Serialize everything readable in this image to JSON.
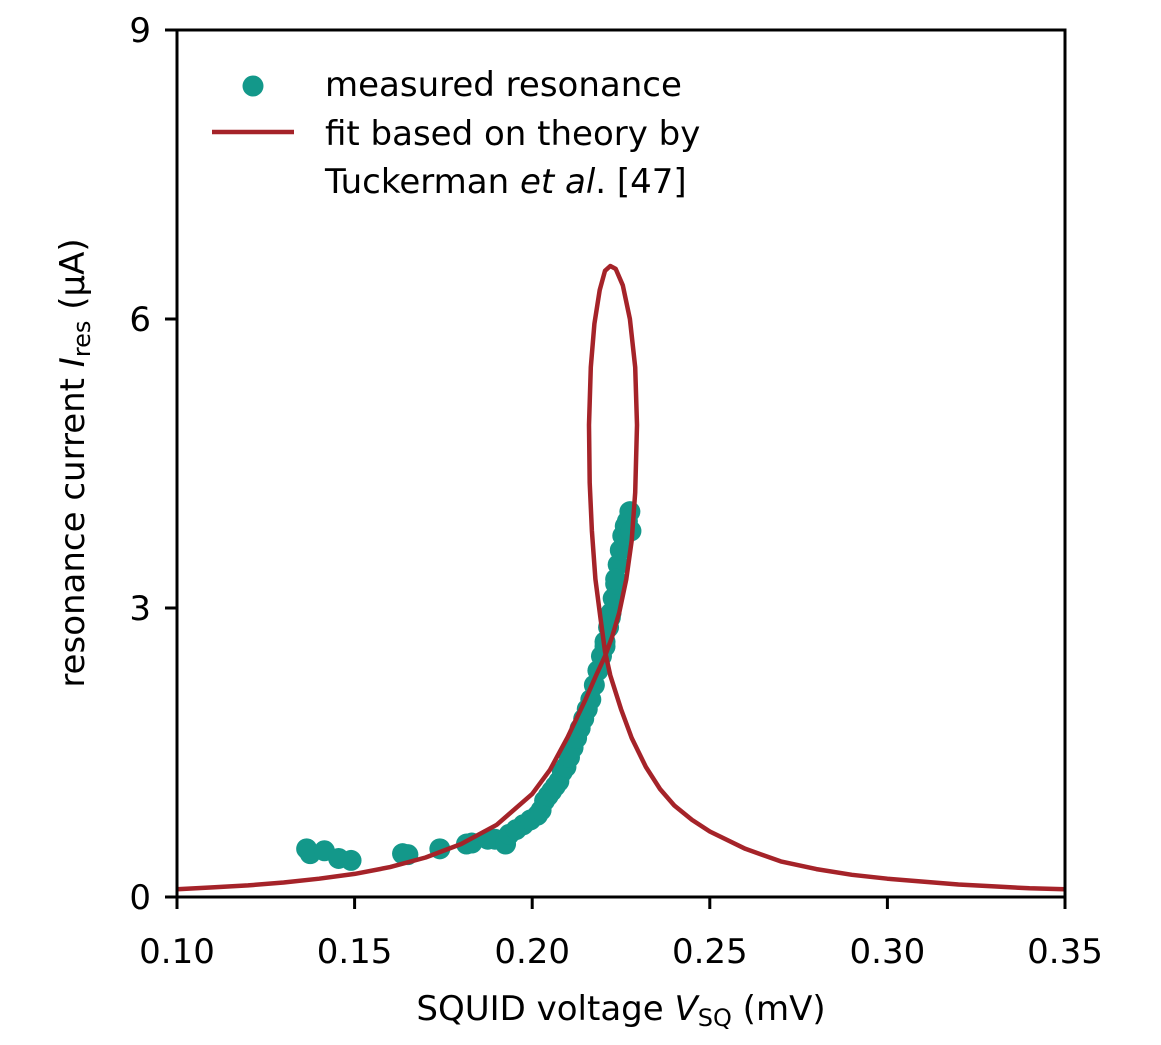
{
  "chart_data": {
    "type": "scatter",
    "xlabel": {
      "prefix": "SQUID voltage ",
      "var": "V",
      "sub": "SQ",
      "suffix": " (mV)"
    },
    "ylabel": {
      "prefix": "resonance current ",
      "var": "I",
      "sub": "res",
      "suffix": " (µA)"
    },
    "xlim": [
      0.1,
      0.35
    ],
    "ylim": [
      0,
      9
    ],
    "xticks": [
      0.1,
      0.15,
      0.2,
      0.25,
      0.3,
      0.35
    ],
    "xtick_labels": [
      "0.10",
      "0.15",
      "0.20",
      "0.25",
      "0.30",
      "0.35"
    ],
    "yticks": [
      0,
      3,
      6,
      9
    ],
    "ytick_labels": [
      "0",
      "3",
      "6",
      "9"
    ],
    "grid": false,
    "legend_position": "top-left",
    "legend": {
      "measured": "measured resonance",
      "fit_line1": "fit based on theory by",
      "fit_line2_a": "Tuckerman ",
      "fit_line2_b": "et al",
      "fit_line2_c": ".  [47]"
    },
    "colors": {
      "measured": "#13988a",
      "fit": "#a52329"
    },
    "series": [
      {
        "kind": "scatter",
        "x": [
          0.1365,
          0.1375,
          0.1415,
          0.1455,
          0.149,
          0.1635,
          0.165,
          0.174,
          0.1815,
          0.183,
          0.1875,
          0.1895,
          0.1925,
          0.1935,
          0.1955,
          0.1975,
          0.1995,
          0.2015,
          0.2025,
          0.2035,
          0.2045,
          0.2055,
          0.2065,
          0.2075,
          0.2085,
          0.2095,
          0.2105,
          0.2115,
          0.2125,
          0.2135,
          0.2145,
          0.2155,
          0.2165,
          0.2175,
          0.2185,
          0.2195,
          0.2205,
          0.2215,
          0.2222,
          0.2228,
          0.2235,
          0.2242,
          0.2248,
          0.2255,
          0.2262,
          0.2268,
          0.2275,
          0.2278,
          0.2205,
          0.222,
          0.2235
        ],
        "y": [
          0.5,
          0.45,
          0.48,
          0.4,
          0.38,
          0.45,
          0.44,
          0.5,
          0.55,
          0.56,
          0.6,
          0.6,
          0.55,
          0.65,
          0.7,
          0.75,
          0.8,
          0.85,
          0.9,
          1.0,
          1.05,
          1.1,
          1.15,
          1.2,
          1.3,
          1.35,
          1.45,
          1.55,
          1.65,
          1.75,
          1.85,
          1.95,
          2.05,
          2.2,
          2.35,
          2.5,
          2.65,
          2.8,
          2.95,
          3.1,
          3.25,
          3.45,
          3.6,
          3.75,
          3.85,
          3.9,
          4.0,
          3.8,
          2.6,
          2.9,
          3.3
        ]
      },
      {
        "kind": "line",
        "x": [
          0.1,
          0.11,
          0.12,
          0.13,
          0.14,
          0.15,
          0.16,
          0.17,
          0.18,
          0.19,
          0.2,
          0.205,
          0.21,
          0.215,
          0.218,
          0.2205,
          0.2225,
          0.2245,
          0.2265,
          0.228,
          0.229,
          0.2295,
          0.229,
          0.2275,
          0.2255,
          0.2235,
          0.222,
          0.2205,
          0.219,
          0.2175,
          0.2165,
          0.216,
          0.2162,
          0.2168,
          0.2178,
          0.2192,
          0.2205,
          0.222,
          0.225,
          0.228,
          0.232,
          0.236,
          0.24,
          0.245,
          0.25,
          0.26,
          0.27,
          0.28,
          0.29,
          0.3,
          0.31,
          0.32,
          0.33,
          0.34,
          0.35
        ],
        "y": [
          0.08,
          0.1,
          0.12,
          0.15,
          0.19,
          0.24,
          0.31,
          0.41,
          0.55,
          0.75,
          1.07,
          1.32,
          1.66,
          2.05,
          2.3,
          2.5,
          2.7,
          2.95,
          3.3,
          3.7,
          4.2,
          4.9,
          5.5,
          6.0,
          6.35,
          6.52,
          6.55,
          6.5,
          6.3,
          5.95,
          5.5,
          4.9,
          4.3,
          3.8,
          3.3,
          2.9,
          2.55,
          2.3,
          1.95,
          1.65,
          1.35,
          1.12,
          0.95,
          0.8,
          0.68,
          0.5,
          0.37,
          0.29,
          0.23,
          0.19,
          0.16,
          0.13,
          0.11,
          0.09,
          0.08
        ]
      }
    ]
  }
}
